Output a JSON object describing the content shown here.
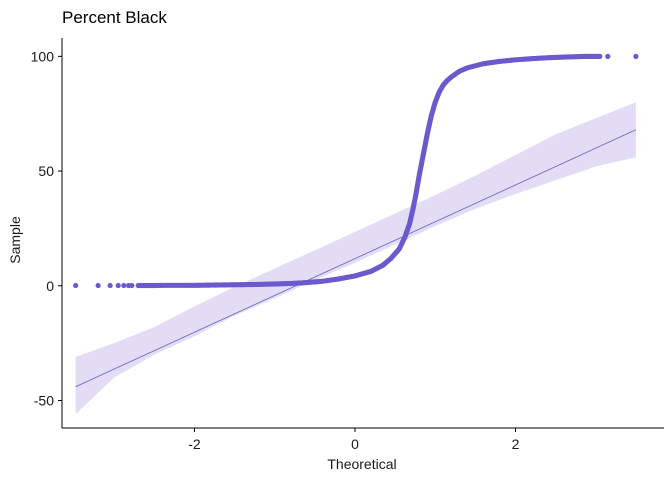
{
  "chart_data": {
    "type": "scatter",
    "title": "Percent Black",
    "xlabel": "Theoretical",
    "ylabel": "Sample",
    "xlim": [
      -3.65,
      3.85
    ],
    "ylim": [
      -62,
      108
    ],
    "x_ticks": [
      -2,
      0,
      2
    ],
    "x_tick_labels": [
      "-2",
      "0",
      "2"
    ],
    "y_ticks": [
      -50,
      0,
      50,
      100
    ],
    "y_tick_labels": [
      "-50",
      "0",
      "50",
      "100"
    ],
    "grid": false,
    "legend": "none",
    "point_color": "#6A5ACD",
    "line_color": "#6A5ACD",
    "band_color": "#E2DDF5",
    "points": {
      "description": "sample quantiles vs theoretical normal quantiles",
      "x": [
        -3.48,
        -3.2,
        -3.05,
        -2.95,
        -2.88,
        -2.82,
        -2.78,
        -2.7,
        -2.6,
        -2.5,
        -2.4,
        -2.3,
        -2.2,
        -2.0,
        -1.8,
        -1.6,
        -1.4,
        -1.2,
        -1.0,
        -0.8,
        -0.6,
        -0.4,
        -0.2,
        0.0,
        0.2,
        0.35,
        0.45,
        0.55,
        0.62,
        0.68,
        0.72,
        0.76,
        0.8,
        0.85,
        0.9,
        0.95,
        1.0,
        1.05,
        1.1,
        1.15,
        1.2,
        1.3,
        1.4,
        1.6,
        1.8,
        2.0,
        2.2,
        2.4,
        2.6,
        2.7,
        2.8,
        2.86,
        2.92,
        2.98,
        3.05,
        3.15,
        3.5
      ],
      "y": [
        0.1,
        0.1,
        0.1,
        0.1,
        0.1,
        0.1,
        0.1,
        0.1,
        0.1,
        0.1,
        0.2,
        0.2,
        0.2,
        0.2,
        0.3,
        0.4,
        0.5,
        0.6,
        0.8,
        1.0,
        1.4,
        2.0,
        3.0,
        4.3,
        6.3,
        9.0,
        12.0,
        16.0,
        21.0,
        27.0,
        33.0,
        40.0,
        48.0,
        57.0,
        66.0,
        74.0,
        80.0,
        84.5,
        87.5,
        89.5,
        91.0,
        93.5,
        95.0,
        96.8,
        97.8,
        98.5,
        99.0,
        99.4,
        99.7,
        99.8,
        99.9,
        100.0,
        100.0,
        100.0,
        100.0,
        100.0,
        100.0
      ]
    },
    "fit_line": {
      "x": [
        -3.48,
        3.5
      ],
      "y": [
        -44,
        68
      ]
    },
    "confidence_band": {
      "x": [
        -3.48,
        -3.0,
        -2.5,
        -2.0,
        -1.5,
        -1.0,
        -0.5,
        0.0,
        0.5,
        1.0,
        1.5,
        2.0,
        2.5,
        3.0,
        3.5
      ],
      "lower": [
        -56,
        -40,
        -30,
        -22,
        -13,
        -5.5,
        2.5,
        10,
        18,
        26,
        33.5,
        40,
        46,
        52,
        56
      ],
      "upper": [
        -31,
        -25,
        -18,
        -9,
        -0.5,
        7.5,
        15.5,
        23.5,
        31.5,
        39.5,
        48,
        57,
        66,
        73,
        80
      ]
    }
  }
}
